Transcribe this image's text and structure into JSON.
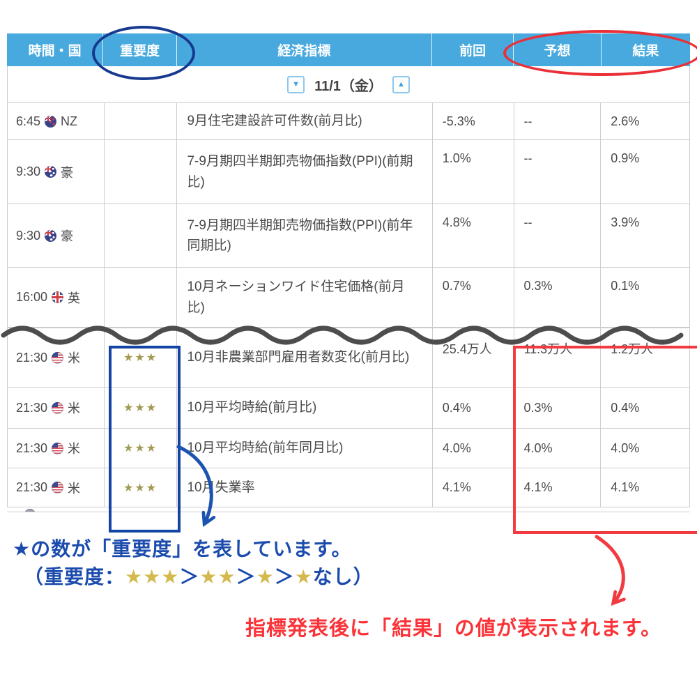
{
  "table": {
    "headers": [
      "時間・国",
      "重要度",
      "経済指標",
      "前回",
      "予想",
      "結果"
    ],
    "date_nav": {
      "prev_label": "▼",
      "date_label": "11/1（金）",
      "next_label": "▲"
    },
    "rows_before_gap": [
      {
        "time": "6:45",
        "flag": "nz",
        "country": "NZ",
        "stars": "",
        "indicator": "9月住宅建設許可件数(前月比)",
        "previous": "-5.3%",
        "forecast": "--",
        "result": "2.6%"
      },
      {
        "time": "9:30",
        "flag": "au",
        "country": "豪",
        "stars": "",
        "indicator": "7-9月期四半期卸売物価指数(PPI)(前期比)",
        "previous": "1.0%",
        "forecast": "--",
        "result": "0.9%"
      },
      {
        "time": "9:30",
        "flag": "au",
        "country": "豪",
        "stars": "",
        "indicator": "7-9月期四半期卸売物価指数(PPI)(前年同期比)",
        "previous": "4.8%",
        "forecast": "--",
        "result": "3.9%"
      },
      {
        "time": "16:00",
        "flag": "uk",
        "country": "英",
        "stars": "",
        "indicator": "10月ネーションワイド住宅価格(前月比)",
        "previous": "0.7%",
        "forecast": "0.3%",
        "result": "0.1%"
      }
    ],
    "rows_after_gap": [
      {
        "time": "21:30",
        "flag": "us",
        "country": "米",
        "stars": "★★★",
        "indicator": "10月非農業部門雇用者数変化(前月比)",
        "previous": "25.4万人",
        "forecast": "11.3万人",
        "result": "1.2万人"
      },
      {
        "time": "21:30",
        "flag": "us",
        "country": "米",
        "stars": "★★★",
        "indicator": "10月平均時給(前月比)",
        "previous": "0.4%",
        "forecast": "0.3%",
        "result": "0.4%"
      },
      {
        "time": "21:30",
        "flag": "us",
        "country": "米",
        "stars": "★★★",
        "indicator": "10月平均時給(前年同月比)",
        "previous": "4.0%",
        "forecast": "4.0%",
        "result": "4.0%"
      },
      {
        "time": "21:30",
        "flag": "us",
        "country": "米",
        "stars": "★★★",
        "indicator": "10月失業率",
        "previous": "4.1%",
        "forecast": "4.1%",
        "result": "4.1%"
      }
    ]
  },
  "annotations": {
    "importance_note_line1": "★の数が「重要度」を表しています。",
    "importance_note_line2_segments": [
      {
        "text": "（重要度：",
        "color": "blue"
      },
      {
        "text": "★★★",
        "color": "gold"
      },
      {
        "text": "＞",
        "color": "blue"
      },
      {
        "text": "★★",
        "color": "gold"
      },
      {
        "text": "＞",
        "color": "blue"
      },
      {
        "text": "★",
        "color": "gold"
      },
      {
        "text": "＞",
        "color": "blue"
      },
      {
        "text": "★",
        "color": "gold"
      },
      {
        "text": "なし）",
        "color": "blue"
      }
    ],
    "result_note": "指標発表後に「結果」の値が表示されます。"
  },
  "colors": {
    "header_blue": "#47a9dd",
    "annotation_blue": "#1b4bad",
    "annotation_red": "#fb3338",
    "highlight_blue": "#1243a5",
    "highlight_red": "#f23b40",
    "star_gold_table": "#a39a52",
    "star_gold_note": "#d4b94e"
  }
}
